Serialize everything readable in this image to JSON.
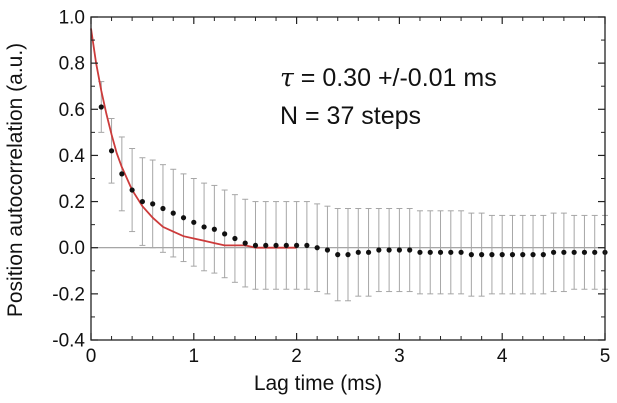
{
  "chart_data": {
    "type": "scatter",
    "xlabel": "Lag time (ms)",
    "ylabel": "Position autocorrelation (a.u.)",
    "xlim": [
      0,
      5
    ],
    "ylim": [
      -0.4,
      1.0
    ],
    "x_ticks": [
      0,
      1,
      2,
      3,
      4,
      5
    ],
    "y_ticks": [
      -0.4,
      -0.2,
      0.0,
      0.2,
      0.4,
      0.6,
      0.8,
      1.0
    ],
    "grid": false,
    "zero_line": true,
    "annotation_lines": [
      {
        "symbol": "τ",
        "text": " = 0.30 +/-0.01 ms"
      },
      {
        "text": "N = 37 steps"
      }
    ],
    "series": [
      {
        "style": "points-with-error-bars",
        "color": "#111111",
        "error_bar_color": "#a6a6a6",
        "points": [
          {
            "x": 0.1,
            "y": 0.61,
            "err": 0.11
          },
          {
            "x": 0.2,
            "y": 0.42,
            "err": 0.14
          },
          {
            "x": 0.3,
            "y": 0.32,
            "err": 0.16
          },
          {
            "x": 0.4,
            "y": 0.25,
            "err": 0.18
          },
          {
            "x": 0.5,
            "y": 0.2,
            "err": 0.19
          },
          {
            "x": 0.6,
            "y": 0.19,
            "err": 0.19
          },
          {
            "x": 0.7,
            "y": 0.17,
            "err": 0.19
          },
          {
            "x": 0.8,
            "y": 0.15,
            "err": 0.19
          },
          {
            "x": 0.9,
            "y": 0.13,
            "err": 0.19
          },
          {
            "x": 1.0,
            "y": 0.11,
            "err": 0.19
          },
          {
            "x": 1.1,
            "y": 0.09,
            "err": 0.19
          },
          {
            "x": 1.2,
            "y": 0.08,
            "err": 0.19
          },
          {
            "x": 1.3,
            "y": 0.06,
            "err": 0.19
          },
          {
            "x": 1.4,
            "y": 0.04,
            "err": 0.19
          },
          {
            "x": 1.5,
            "y": 0.02,
            "err": 0.19
          },
          {
            "x": 1.6,
            "y": 0.01,
            "err": 0.19
          },
          {
            "x": 1.7,
            "y": 0.01,
            "err": 0.19
          },
          {
            "x": 1.8,
            "y": 0.01,
            "err": 0.19
          },
          {
            "x": 1.9,
            "y": 0.01,
            "err": 0.19
          },
          {
            "x": 2.0,
            "y": 0.01,
            "err": 0.19
          },
          {
            "x": 2.1,
            "y": 0.01,
            "err": 0.19
          },
          {
            "x": 2.2,
            "y": 0.0,
            "err": 0.19
          },
          {
            "x": 2.3,
            "y": -0.01,
            "err": 0.19
          },
          {
            "x": 2.4,
            "y": -0.03,
            "err": 0.2
          },
          {
            "x": 2.5,
            "y": -0.03,
            "err": 0.2
          },
          {
            "x": 2.6,
            "y": -0.02,
            "err": 0.19
          },
          {
            "x": 2.7,
            "y": -0.02,
            "err": 0.19
          },
          {
            "x": 2.8,
            "y": -0.01,
            "err": 0.18
          },
          {
            "x": 2.9,
            "y": -0.01,
            "err": 0.18
          },
          {
            "x": 3.0,
            "y": -0.01,
            "err": 0.18
          },
          {
            "x": 3.1,
            "y": -0.01,
            "err": 0.18
          },
          {
            "x": 3.2,
            "y": -0.02,
            "err": 0.18
          },
          {
            "x": 3.3,
            "y": -0.02,
            "err": 0.18
          },
          {
            "x": 3.4,
            "y": -0.02,
            "err": 0.18
          },
          {
            "x": 3.5,
            "y": -0.02,
            "err": 0.18
          },
          {
            "x": 3.6,
            "y": -0.02,
            "err": 0.18
          },
          {
            "x": 3.7,
            "y": -0.03,
            "err": 0.18
          },
          {
            "x": 3.8,
            "y": -0.03,
            "err": 0.18
          },
          {
            "x": 3.9,
            "y": -0.03,
            "err": 0.17
          },
          {
            "x": 4.0,
            "y": -0.03,
            "err": 0.17
          },
          {
            "x": 4.1,
            "y": -0.03,
            "err": 0.17
          },
          {
            "x": 4.2,
            "y": -0.03,
            "err": 0.17
          },
          {
            "x": 4.3,
            "y": -0.03,
            "err": 0.17
          },
          {
            "x": 4.4,
            "y": -0.03,
            "err": 0.17
          },
          {
            "x": 4.5,
            "y": -0.02,
            "err": 0.17
          },
          {
            "x": 4.6,
            "y": -0.02,
            "err": 0.17
          },
          {
            "x": 4.7,
            "y": -0.02,
            "err": 0.16
          },
          {
            "x": 4.8,
            "y": -0.02,
            "err": 0.16
          },
          {
            "x": 4.9,
            "y": -0.02,
            "err": 0.16
          },
          {
            "x": 5.0,
            "y": -0.02,
            "err": 0.16
          }
        ]
      },
      {
        "style": "line",
        "color": "#cc3b3b",
        "x": [
          0.0,
          0.05,
          0.1,
          0.15,
          0.2,
          0.25,
          0.3,
          0.4,
          0.5,
          0.6,
          0.7,
          0.8,
          0.9,
          1.0,
          1.1,
          1.2,
          1.3,
          1.4,
          1.5,
          1.6,
          1.7,
          1.8,
          1.9,
          2.0
        ],
        "y": [
          0.95,
          0.8,
          0.68,
          0.58,
          0.49,
          0.41,
          0.35,
          0.25,
          0.18,
          0.13,
          0.09,
          0.07,
          0.05,
          0.04,
          0.03,
          0.02,
          0.01,
          0.01,
          0.01,
          0.0,
          0.0,
          0.0,
          0.0,
          0.0
        ]
      }
    ]
  }
}
